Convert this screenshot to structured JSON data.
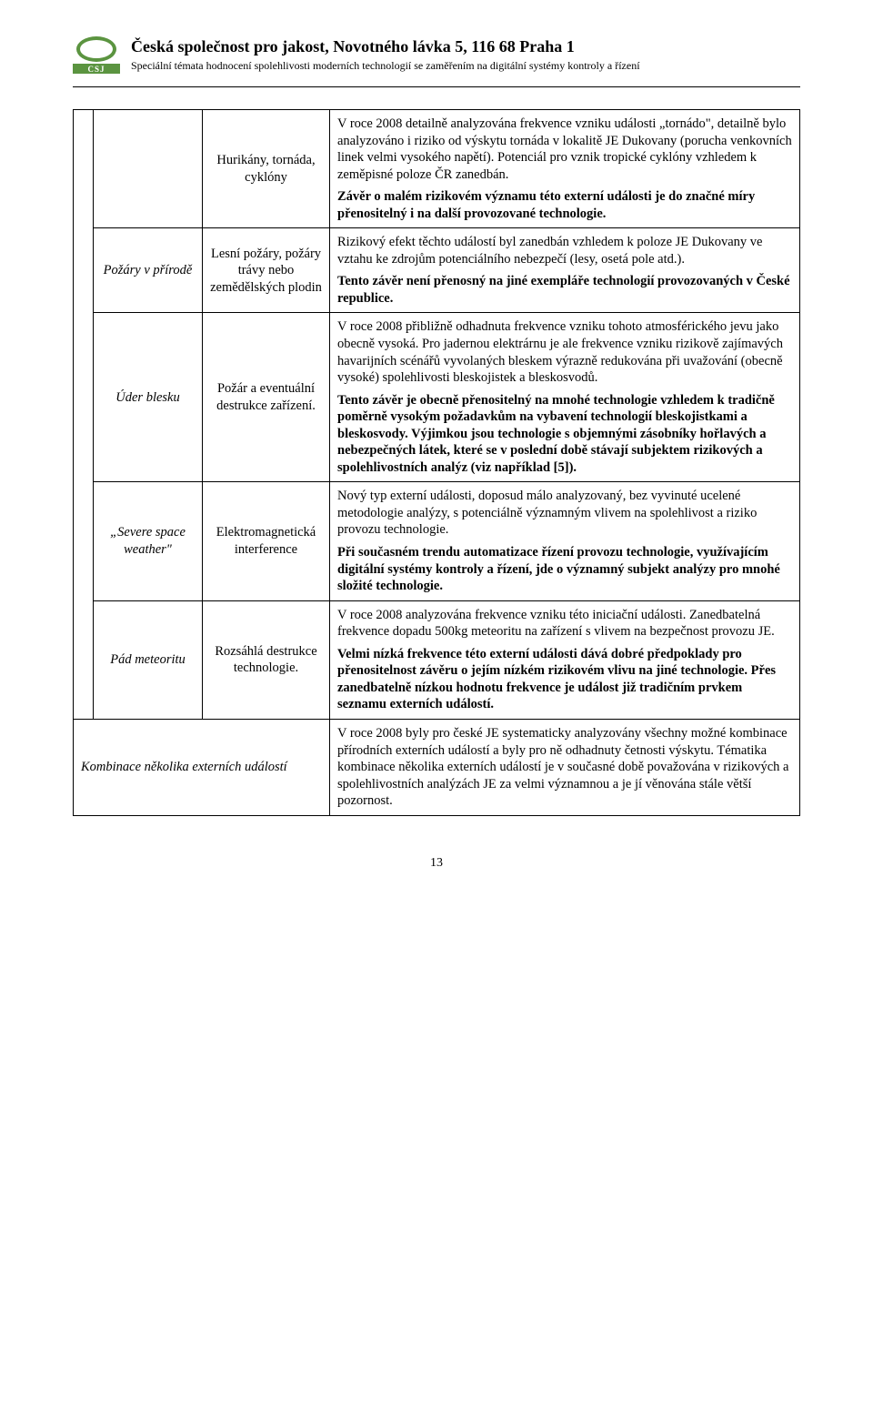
{
  "header": {
    "logo_text": "CSJ",
    "title": "Česká společnost pro jakost, Novotného lávka 5, 116 68 Praha 1",
    "subtitle": "Speciální témata hodnocení spolehlivosti moderních technologií se zaměřením na digitální systémy kontroly a řízení"
  },
  "rows": {
    "r1": {
      "col2": "Hurikány, tornáda, cyklóny",
      "col3_p1": "V roce 2008 detailně analyzována frekvence vzniku události „tornádo\", detailně bylo analyzováno i riziko od výskytu tornáda v lokalitě JE Dukovany (porucha venkovních linek velmi vysokého napětí). Potenciál pro vznik tropické cyklóny vzhledem k zeměpisné poloze ČR zanedbán.",
      "col3_p2": "Závěr o malém rizikovém významu této externí události je do značné míry přenositelný i na další provozované technologie."
    },
    "r2": {
      "col1": "Požáry v přírodě",
      "col2": "Lesní požáry, požáry trávy nebo zemědělských plodin",
      "col3_p1": "Rizikový efekt těchto událostí byl zanedbán vzhledem k poloze JE Dukovany ve vztahu ke zdrojům potenciálního nebezpečí (lesy, osetá pole atd.).",
      "col3_p2": "Tento závěr není přenosný na jiné exempláře technologií provozovaných v České republice."
    },
    "r3": {
      "col1": "Úder blesku",
      "col2": "Požár a eventuální destrukce zařízení.",
      "col3_p1": "V roce 2008 přibližně odhadnuta frekvence vzniku tohoto atmosférického jevu jako obecně vysoká. Pro jadernou elektrárnu je ale frekvence vzniku rizikově zajímavých havarijních scénářů vyvolaných bleskem výrazně redukována při uvažování (obecně vysoké) spolehlivosti bleskojistek a bleskosvodů.",
      "col3_p2": "Tento závěr je obecně přenositelný na mnohé technologie vzhledem k tradičně poměrně vysokým požadavkům na vybavení technologií bleskojistkami a bleskosvody. Výjimkou jsou technologie s objemnými zásobníky hořlavých a nebezpečných látek, které se v poslední době stávají subjektem rizikových a spolehlivostních analýz (viz například [5])."
    },
    "r4": {
      "col1": "„Severe space weather\"",
      "col2": "Elektromagnetická interference",
      "col3_p1": "Nový typ externí události, doposud málo analyzovaný, bez vyvinuté ucelené metodologie analýzy, s potenciálně významným vlivem na spolehlivost a riziko provozu technologie.",
      "col3_p2": " Při  současném trendu automatizace řízení provozu technologie, využívajícím digitální systémy kontroly a řízení, jde o významný subjekt analýzy pro mnohé složité technologie."
    },
    "r5": {
      "col1": "Pád meteoritu",
      "col2": "Rozsáhlá destrukce technologie.",
      "col3_p1": "V roce 2008 analyzována frekvence vzniku této iniciační události. Zanedbatelná frekvence dopadu 500kg meteoritu na zařízení s vlivem na bezpečnost provozu JE.",
      "col3_p2": "Velmi nízká frekvence této externí události dává dobré předpoklady pro přenositelnost závěru o jejím nízkém rizikovém vlivu na jiné technologie. Přes zanedbatelně nízkou hodnotu frekvence je událost již tradičním prvkem seznamu externích událostí."
    },
    "r6": {
      "col_merged": "Kombinace několika externích událostí",
      "col3": "V roce 2008 byly pro české JE systematicky analyzovány všechny možné kombinace přírodních externích událostí a byly pro ně odhadnuty četnosti výskytu. Tématika kombinace několika externích událostí je v současné době považována v rizikových a spolehlivostních analýzách JE za velmi významnou a je jí věnována stále větší pozornost."
    }
  },
  "page_number": "13"
}
